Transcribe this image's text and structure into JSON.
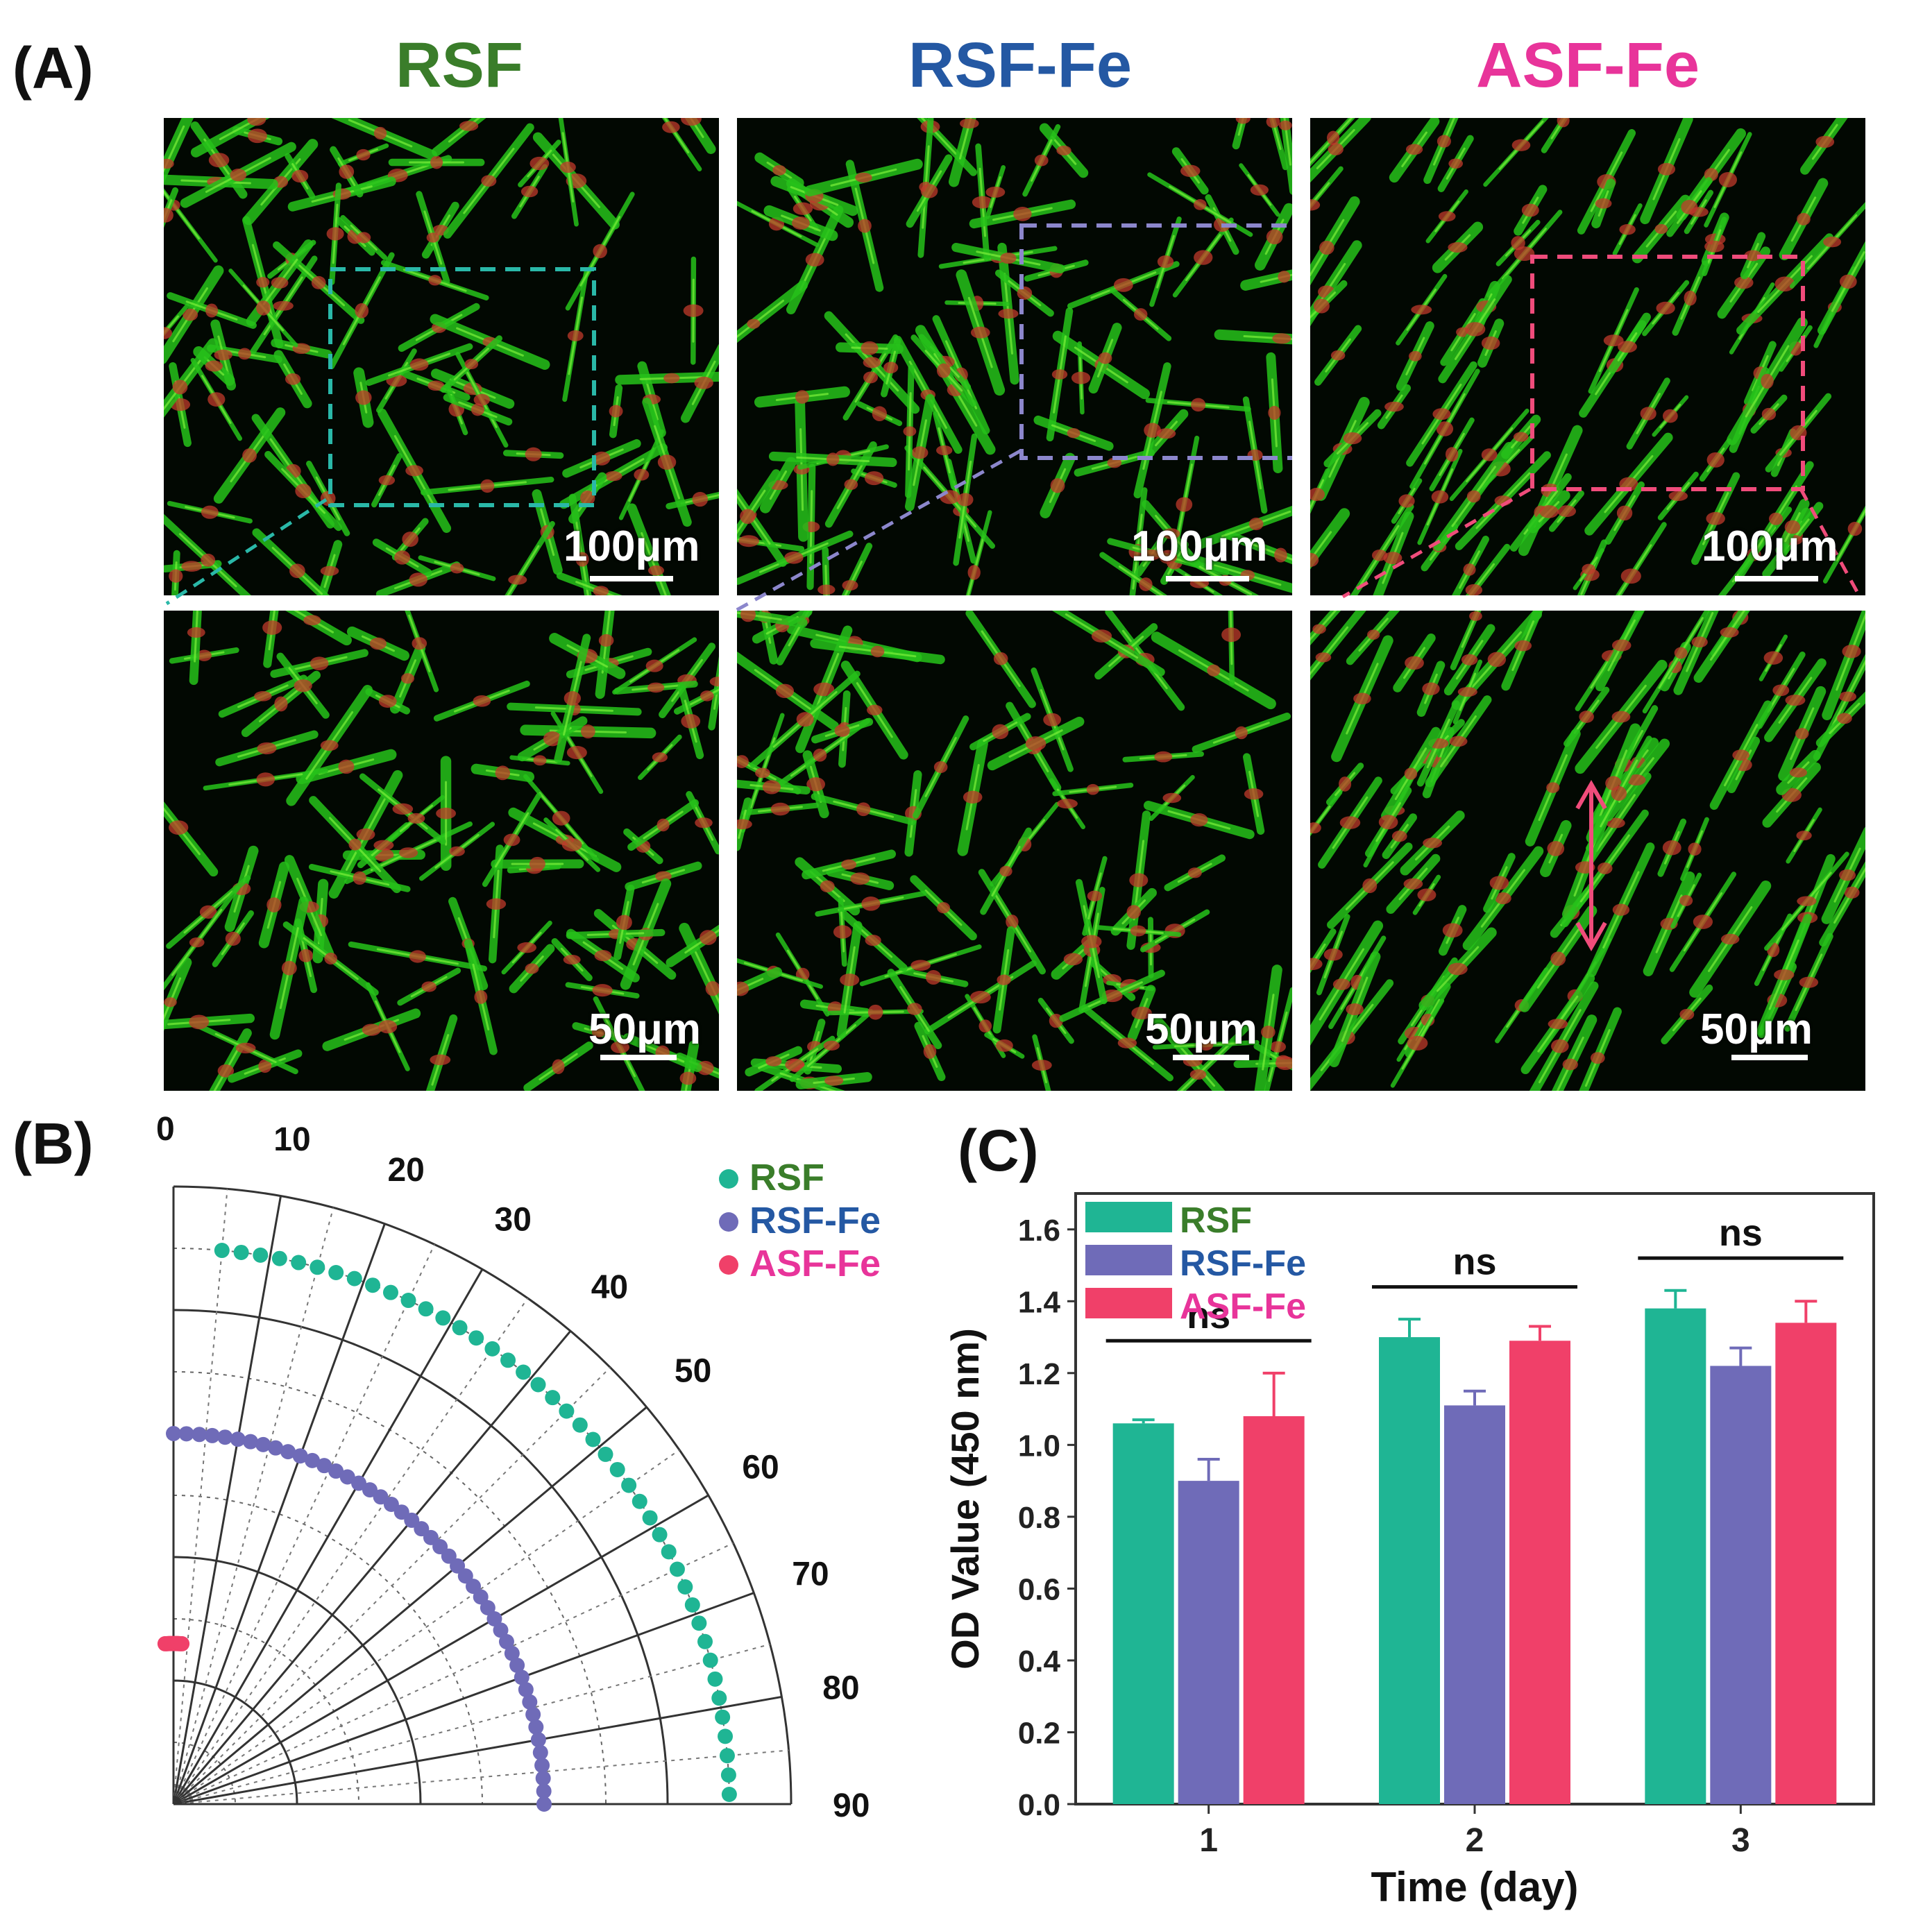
{
  "colors": {
    "rsf": "#1fb594",
    "rsf_fe": "#6f6bb8",
    "asf_fe": "#f04069",
    "title_rsf": "#3a7d2a",
    "title_rsf_fe": "#2458a3",
    "title_asf_fe": "#e8349a"
  },
  "panel_a": {
    "label": "(A)",
    "columns": [
      "RSF",
      "RSF-Fe",
      "ASF-Fe"
    ],
    "top_scale": "100μm",
    "bottom_scale": "50μm"
  },
  "panel_b": {
    "label": "(B)",
    "angle_ticks": [
      "0",
      "10",
      "20",
      "30",
      "40",
      "50",
      "60",
      "70",
      "80",
      "90"
    ],
    "legend": [
      "RSF",
      "RSF-Fe",
      "ASF-Fe"
    ]
  },
  "panel_c": {
    "label": "(C)"
  },
  "chart_data": [
    {
      "type": "scatter",
      "coordinate_system": "polar",
      "theta_range": [
        0,
        90
      ],
      "theta_ticks": [
        0,
        10,
        20,
        30,
        40,
        50,
        60,
        70,
        80,
        90
      ],
      "series": [
        {
          "name": "RSF",
          "radius": 0.9,
          "theta_range": [
            5,
            90
          ]
        },
        {
          "name": "RSF-Fe",
          "radius": 0.6,
          "theta_range": [
            0,
            90
          ]
        },
        {
          "name": "ASF-Fe",
          "radius": 0.26,
          "theta_range": [
            -3,
            3
          ]
        }
      ],
      "grid": true,
      "legend_position": "top-right"
    },
    {
      "type": "bar",
      "categories": [
        "1",
        "2",
        "3"
      ],
      "series": [
        {
          "name": "RSF",
          "values": [
            1.06,
            1.3,
            1.38
          ],
          "errors": [
            0.01,
            0.05,
            0.05
          ]
        },
        {
          "name": "RSF-Fe",
          "values": [
            0.9,
            1.11,
            1.22
          ],
          "errors": [
            0.06,
            0.04,
            0.05
          ]
        },
        {
          "name": "ASF-Fe",
          "values": [
            1.08,
            1.29,
            1.34
          ],
          "errors": [
            0.12,
            0.04,
            0.06
          ]
        }
      ],
      "xlabel": "Time (day)",
      "ylabel": "OD Value (450 nm)",
      "ylim": [
        0,
        1.7
      ],
      "yticks": [
        "0.0",
        "0.2",
        "0.4",
        "0.6",
        "0.8",
        "1.0",
        "1.2",
        "1.4",
        "1.6"
      ],
      "significance": [
        {
          "text": "ns",
          "category": "1"
        },
        {
          "text": "ns",
          "category": "2"
        },
        {
          "text": "ns",
          "category": "3"
        }
      ],
      "legend_position": "top-left",
      "grid": false
    }
  ]
}
